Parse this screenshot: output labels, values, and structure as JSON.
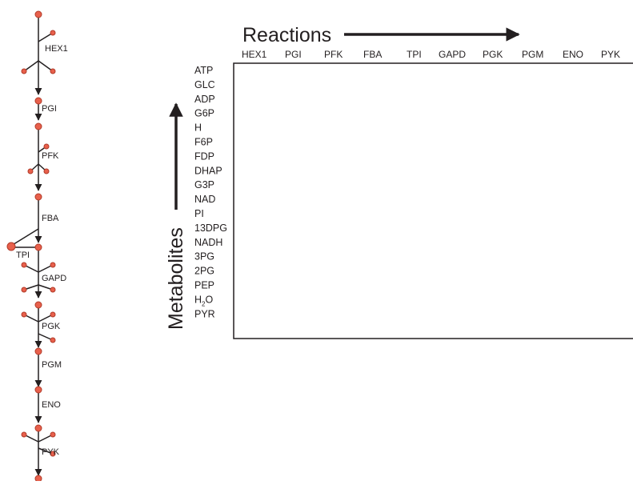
{
  "axes": {
    "reactions_title": "Reactions",
    "metabolites_title": "Metabolites"
  },
  "reactions": [
    "HEX1",
    "PGI",
    "PFK",
    "FBA",
    "TPI",
    "GAPD",
    "PGK",
    "PGM",
    "ENO",
    "PYK"
  ],
  "metabolites": [
    {
      "base": "ATP"
    },
    {
      "base": "GLC"
    },
    {
      "base": "ADP"
    },
    {
      "base": "G6P"
    },
    {
      "base": "H"
    },
    {
      "base": "F6P"
    },
    {
      "base": "FDP"
    },
    {
      "base": "DHAP"
    },
    {
      "base": "G3P"
    },
    {
      "base": "NAD"
    },
    {
      "base": "PI"
    },
    {
      "base": "13DPG"
    },
    {
      "base": "NADH"
    },
    {
      "base": "3PG"
    },
    {
      "base": "2PG"
    },
    {
      "base": "PEP"
    },
    {
      "base": "H",
      "sub": "2",
      "tail": "O"
    },
    {
      "base": "PYR"
    }
  ],
  "pathway_labels": {
    "hex1": "HEX1",
    "pgi": "PGI",
    "pfk": "PFK",
    "fba": "FBA",
    "tpi": "TPI",
    "gapd": "GAPD",
    "pgk": "PGK",
    "pgm": "PGM",
    "eno": "ENO",
    "pyk": "PYK"
  },
  "colors": {
    "node_fill": "#e8604c",
    "node_stroke": "#b03a28",
    "line": "#231f20"
  }
}
